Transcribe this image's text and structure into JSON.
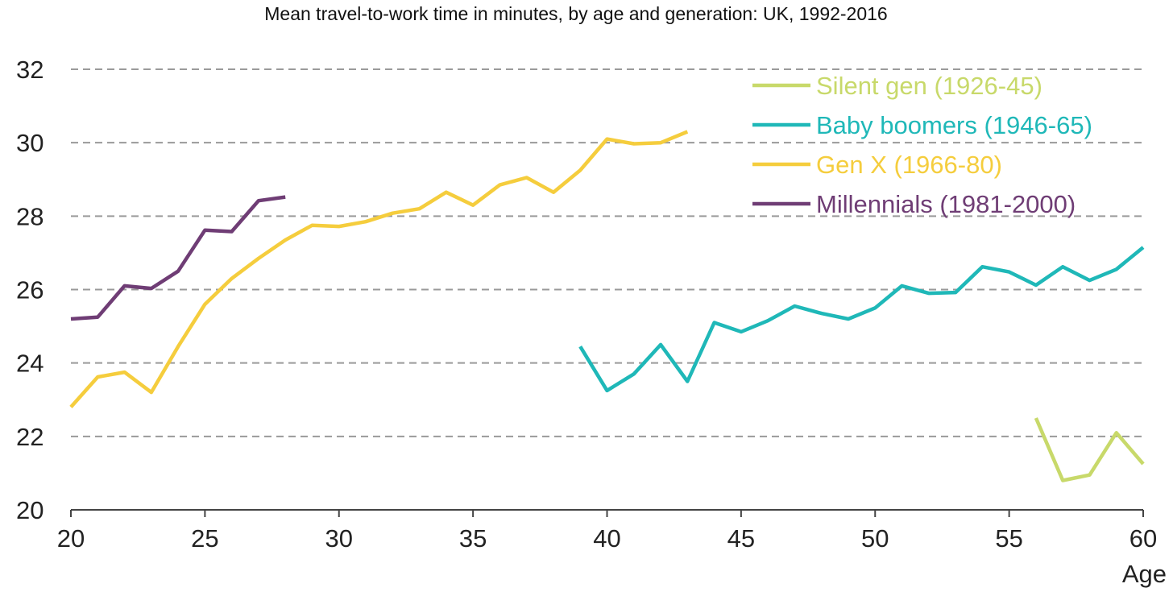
{
  "chart_data": {
    "type": "line",
    "title": "Mean travel-to-work time in minutes, by age and generation: UK, 1992-2016",
    "xlabel": "Age",
    "ylabel": "",
    "xlim": [
      20,
      60
    ],
    "ylim": [
      20,
      32
    ],
    "xticks": [
      20,
      25,
      30,
      35,
      40,
      45,
      50,
      55,
      60
    ],
    "yticks": [
      20,
      22,
      24,
      26,
      28,
      30,
      32
    ],
    "grid": "horizontal dashed",
    "legend_position": "top-right",
    "series": [
      {
        "name": "Silent gen (1926-45)",
        "color": "#c8d96a",
        "points": [
          [
            56,
            22.5
          ],
          [
            57,
            20.8
          ],
          [
            58,
            20.95
          ],
          [
            59,
            22.1
          ],
          [
            60,
            21.25
          ]
        ]
      },
      {
        "name": "Baby boomers (1946-65)",
        "color": "#1fb8b8",
        "points": [
          [
            39,
            24.45
          ],
          [
            40,
            23.25
          ],
          [
            41,
            23.7
          ],
          [
            42,
            24.5
          ],
          [
            43,
            23.5
          ],
          [
            44,
            25.1
          ],
          [
            45,
            24.85
          ],
          [
            46,
            25.15
          ],
          [
            47,
            25.55
          ],
          [
            48,
            25.35
          ],
          [
            49,
            25.2
          ],
          [
            50,
            25.5
          ],
          [
            51,
            26.1
          ],
          [
            52,
            25.9
          ],
          [
            53,
            25.92
          ],
          [
            54,
            26.62
          ],
          [
            55,
            26.48
          ],
          [
            56,
            26.12
          ],
          [
            57,
            26.62
          ],
          [
            58,
            26.25
          ],
          [
            59,
            26.55
          ],
          [
            60,
            27.15
          ]
        ]
      },
      {
        "name": "Gen X (1966-80)",
        "color": "#f5cd3d",
        "points": [
          [
            20,
            22.8
          ],
          [
            21,
            23.62
          ],
          [
            22,
            23.75
          ],
          [
            23,
            23.2
          ],
          [
            24,
            24.45
          ],
          [
            25,
            25.6
          ],
          [
            26,
            26.3
          ],
          [
            27,
            26.85
          ],
          [
            28,
            27.35
          ],
          [
            29,
            27.75
          ],
          [
            30,
            27.72
          ],
          [
            31,
            27.85
          ],
          [
            32,
            28.08
          ],
          [
            33,
            28.2
          ],
          [
            34,
            28.65
          ],
          [
            35,
            28.3
          ],
          [
            36,
            28.85
          ],
          [
            37,
            29.05
          ],
          [
            38,
            28.65
          ],
          [
            39,
            29.25
          ],
          [
            40,
            30.1
          ],
          [
            41,
            29.97
          ],
          [
            42,
            30.0
          ],
          [
            43,
            30.3
          ]
        ]
      },
      {
        "name": "Millennials (1981-2000)",
        "color": "#6f3d75",
        "points": [
          [
            20,
            25.2
          ],
          [
            21,
            25.25
          ],
          [
            22,
            26.1
          ],
          [
            23,
            26.03
          ],
          [
            24,
            26.5
          ],
          [
            25,
            27.62
          ],
          [
            26,
            27.58
          ],
          [
            27,
            28.42
          ],
          [
            28,
            28.52
          ]
        ]
      }
    ]
  }
}
